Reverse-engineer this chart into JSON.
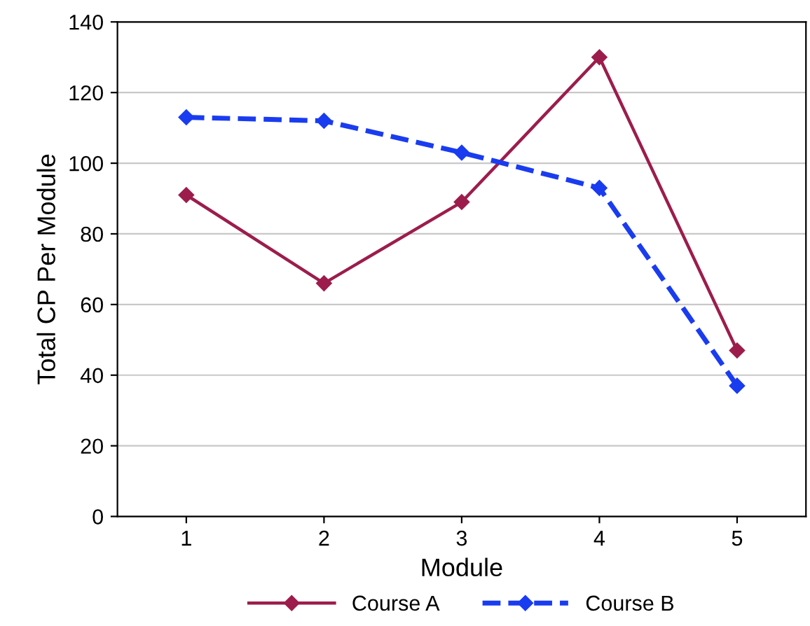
{
  "chart_data": {
    "type": "line",
    "xlabel": "Module",
    "ylabel": "Total CP Per Module",
    "categories": [
      "1",
      "2",
      "3",
      "4",
      "5"
    ],
    "series": [
      {
        "name": "Course A",
        "color": "#9c1d4c",
        "values": [
          91,
          66,
          89,
          130,
          47
        ],
        "line_style": "solid"
      },
      {
        "name": "Course B",
        "color": "#1a3cf0",
        "values": [
          113,
          112,
          103,
          93,
          37
        ],
        "line_style": "dashed"
      }
    ],
    "ylim": [
      0,
      140
    ],
    "yticks": [
      0,
      20,
      40,
      60,
      80,
      100,
      120,
      140
    ],
    "grid": "y",
    "legend": "bottom",
    "marker": "diamond"
  }
}
